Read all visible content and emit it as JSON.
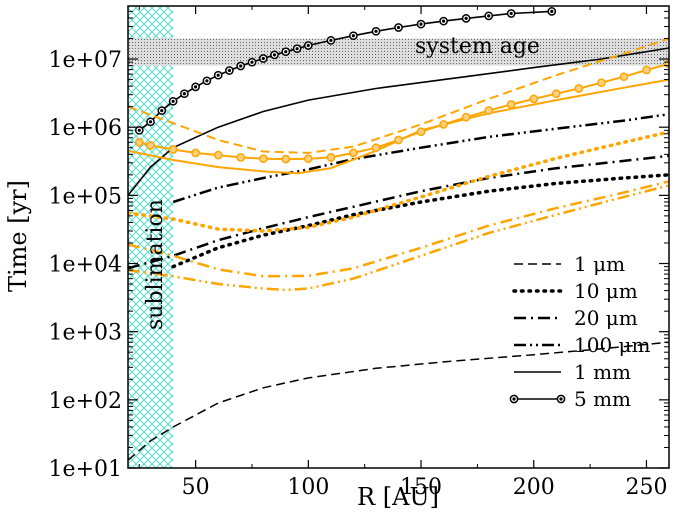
{
  "chart_data": {
    "type": "line",
    "xlabel": "R [AU]",
    "ylabel": "Time [yr]",
    "xlim": [
      20,
      260
    ],
    "ylim": [
      10,
      60000000
    ],
    "yscale": "log",
    "grid": false,
    "legend_position": "bottom-right",
    "x_ticks": [
      50,
      100,
      150,
      200,
      250
    ],
    "x_tick_labels": [
      "50",
      "100",
      "150",
      "200",
      "250"
    ],
    "y_ticks": [
      10,
      100,
      1000,
      10000,
      100000,
      1000000,
      10000000
    ],
    "y_tick_labels": [
      "1e+01",
      "1e+02",
      "1e+03",
      "1e+04",
      "1e+05",
      "1e+06",
      "1e+07"
    ],
    "legend": [
      {
        "label": "1 μm",
        "style": "dashed"
      },
      {
        "label": "10 μm",
        "style": "dotted"
      },
      {
        "label": "20 μm",
        "style": "dashdot"
      },
      {
        "label": "100 μm",
        "style": "dashdotdot"
      },
      {
        "label": "1 mm",
        "style": "solid"
      },
      {
        "label": "5 mm",
        "style": "solid-marker"
      }
    ],
    "colors": {
      "black": "#000000",
      "orange": "#ffa500",
      "sublimation": "#55ddcc",
      "system_age": "#888888"
    },
    "regions": [
      {
        "label": "sublimation",
        "x_range": [
          20,
          40
        ]
      },
      {
        "label": "system age",
        "y_range": [
          8000000,
          20000000
        ]
      }
    ],
    "series": [
      {
        "color": "black",
        "style": "dashed",
        "points": [
          [
            20,
            13
          ],
          [
            30,
            25
          ],
          [
            40,
            40
          ],
          [
            60,
            90
          ],
          [
            80,
            150
          ],
          [
            100,
            210
          ],
          [
            130,
            290
          ],
          [
            160,
            360
          ],
          [
            200,
            460
          ],
          [
            230,
            560
          ],
          [
            260,
            700
          ]
        ]
      },
      {
        "color": "black",
        "style": "dotted",
        "points": [
          [
            40,
            9000
          ],
          [
            60,
            17000
          ],
          [
            80,
            26000
          ],
          [
            100,
            36000
          ],
          [
            120,
            52000
          ],
          [
            150,
            80000
          ],
          [
            180,
            115000
          ],
          [
            210,
            150000
          ],
          [
            240,
            180000
          ],
          [
            260,
            200000
          ]
        ]
      },
      {
        "color": "black",
        "style": "dashdot",
        "points": [
          [
            20,
            8500
          ],
          [
            40,
            13000
          ],
          [
            60,
            22000
          ],
          [
            80,
            33000
          ],
          [
            100,
            48000
          ],
          [
            120,
            68000
          ],
          [
            150,
            115000
          ],
          [
            180,
            180000
          ],
          [
            210,
            250000
          ],
          [
            240,
            320000
          ],
          [
            260,
            380000
          ]
        ]
      },
      {
        "color": "black",
        "style": "dashdotdot",
        "points": [
          [
            40,
            80000
          ],
          [
            60,
            130000
          ],
          [
            80,
            180000
          ],
          [
            100,
            240000
          ],
          [
            120,
            340000
          ],
          [
            150,
            500000
          ],
          [
            180,
            720000
          ],
          [
            210,
            950000
          ],
          [
            240,
            1250000
          ],
          [
            260,
            1550000
          ]
        ]
      },
      {
        "color": "black",
        "style": "solid",
        "points": [
          [
            20,
            100000
          ],
          [
            30,
            260000
          ],
          [
            40,
            500000
          ],
          [
            60,
            1000000
          ],
          [
            80,
            1700000
          ],
          [
            100,
            2500000
          ],
          [
            130,
            3700000
          ],
          [
            160,
            5000000
          ],
          [
            200,
            7500000
          ],
          [
            230,
            10000000
          ],
          [
            260,
            14500000
          ]
        ]
      },
      {
        "color": "black",
        "style": "solid-marker",
        "points": [
          [
            25,
            900000
          ],
          [
            30,
            1200000
          ],
          [
            35,
            1750000
          ],
          [
            40,
            2400000
          ],
          [
            45,
            3100000
          ],
          [
            50,
            3900000
          ],
          [
            55,
            4800000
          ],
          [
            60,
            5800000
          ],
          [
            65,
            6800000
          ],
          [
            70,
            7900000
          ],
          [
            75,
            9000000
          ],
          [
            80,
            10200000
          ],
          [
            85,
            11500000
          ],
          [
            90,
            12800000
          ],
          [
            95,
            14200000
          ],
          [
            100,
            15800000
          ],
          [
            110,
            18800000
          ],
          [
            120,
            22000000
          ],
          [
            130,
            25500000
          ],
          [
            140,
            29000000
          ],
          [
            150,
            32500000
          ],
          [
            160,
            36000000
          ],
          [
            170,
            39500000
          ],
          [
            180,
            43000000
          ],
          [
            190,
            46500000
          ],
          [
            208,
            50000000
          ]
        ]
      },
      {
        "color": "orange",
        "style": "dashed",
        "points": [
          [
            20,
            2000000
          ],
          [
            40,
            1150000
          ],
          [
            60,
            650000
          ],
          [
            80,
            440000
          ],
          [
            100,
            420000
          ],
          [
            120,
            520000
          ],
          [
            150,
            1100000
          ],
          [
            180,
            2600000
          ],
          [
            210,
            5800000
          ],
          [
            240,
            12000000
          ],
          [
            260,
            20000000
          ]
        ]
      },
      {
        "color": "orange",
        "style": "dotted",
        "points": [
          [
            20,
            55000
          ],
          [
            40,
            45000
          ],
          [
            60,
            32000
          ],
          [
            80,
            30000
          ],
          [
            100,
            34000
          ],
          [
            120,
            48000
          ],
          [
            150,
            95000
          ],
          [
            180,
            190000
          ],
          [
            210,
            350000
          ],
          [
            240,
            600000
          ],
          [
            260,
            850000
          ]
        ]
      },
      {
        "color": "orange",
        "style": "dashdot",
        "points": [
          [
            20,
            19000
          ],
          [
            40,
            13000
          ],
          [
            60,
            8200
          ],
          [
            80,
            6500
          ],
          [
            100,
            6600
          ],
          [
            120,
            8500
          ],
          [
            150,
            17000
          ],
          [
            180,
            36000
          ],
          [
            210,
            65000
          ],
          [
            240,
            110000
          ],
          [
            260,
            160000
          ]
        ]
      },
      {
        "color": "orange",
        "style": "dashdotdot",
        "points": [
          [
            20,
            8000
          ],
          [
            40,
            6500
          ],
          [
            60,
            5000
          ],
          [
            80,
            4300
          ],
          [
            90,
            4100
          ],
          [
            100,
            4300
          ],
          [
            120,
            6000
          ],
          [
            150,
            13000
          ],
          [
            180,
            28000
          ],
          [
            210,
            52000
          ],
          [
            240,
            95000
          ],
          [
            260,
            140000
          ]
        ]
      },
      {
        "color": "orange",
        "style": "solid",
        "points": [
          [
            20,
            450000
          ],
          [
            40,
            330000
          ],
          [
            60,
            260000
          ],
          [
            80,
            225000
          ],
          [
            95,
            210000
          ],
          [
            110,
            250000
          ],
          [
            130,
            450000
          ],
          [
            150,
            900000
          ],
          [
            180,
            1600000
          ],
          [
            210,
            2500000
          ],
          [
            240,
            3800000
          ],
          [
            260,
            5000000
          ]
        ]
      },
      {
        "color": "orange",
        "style": "solid-marker",
        "points": [
          [
            25,
            600000
          ],
          [
            30,
            540000
          ],
          [
            40,
            470000
          ],
          [
            50,
            420000
          ],
          [
            60,
            390000
          ],
          [
            70,
            360000
          ],
          [
            80,
            345000
          ],
          [
            90,
            340000
          ],
          [
            100,
            345000
          ],
          [
            110,
            360000
          ],
          [
            120,
            420000
          ],
          [
            130,
            500000
          ],
          [
            140,
            650000
          ],
          [
            150,
            860000
          ],
          [
            160,
            1100000
          ],
          [
            170,
            1400000
          ],
          [
            180,
            1750000
          ],
          [
            190,
            2150000
          ],
          [
            200,
            2600000
          ],
          [
            210,
            3100000
          ],
          [
            220,
            3700000
          ],
          [
            230,
            4500000
          ],
          [
            240,
            5500000
          ],
          [
            250,
            6900000
          ],
          [
            260,
            8500000
          ]
        ]
      }
    ]
  }
}
